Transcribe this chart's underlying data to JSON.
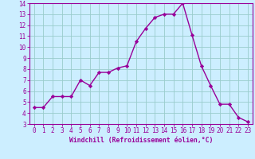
{
  "x": [
    0,
    1,
    2,
    3,
    4,
    5,
    6,
    7,
    8,
    9,
    10,
    11,
    12,
    13,
    14,
    15,
    16,
    17,
    18,
    19,
    20,
    21,
    22,
    23
  ],
  "y": [
    4.5,
    4.5,
    5.5,
    5.5,
    5.5,
    7.0,
    6.5,
    7.7,
    7.7,
    8.1,
    8.3,
    10.5,
    11.7,
    12.7,
    13.0,
    13.0,
    14.0,
    11.1,
    8.3,
    6.5,
    4.8,
    4.8,
    3.6,
    3.2
  ],
  "xlabel": "Windchill (Refroidissement éolien,°C)",
  "ylim": [
    3,
    14
  ],
  "xlim": [
    -0.5,
    23.5
  ],
  "yticks": [
    3,
    4,
    5,
    6,
    7,
    8,
    9,
    10,
    11,
    12,
    13,
    14
  ],
  "xticks": [
    0,
    1,
    2,
    3,
    4,
    5,
    6,
    7,
    8,
    9,
    10,
    11,
    12,
    13,
    14,
    15,
    16,
    17,
    18,
    19,
    20,
    21,
    22,
    23
  ],
  "line_color": "#990099",
  "marker_color": "#990099",
  "bg_color": "#cceeff",
  "grid_color": "#99cccc",
  "axis_color": "#990099",
  "label_color": "#990099",
  "font_color": "#990099",
  "tick_fontsize": 5.5,
  "xlabel_fontsize": 5.8,
  "linewidth": 1.0,
  "markersize": 2.2
}
